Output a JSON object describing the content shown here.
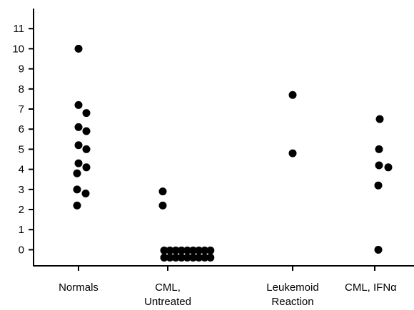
{
  "chart_data": {
    "type": "dot",
    "categories": [
      [
        "Normals"
      ],
      [
        "CML,",
        "Untreated"
      ],
      [
        "Leukemoid",
        "Reaction"
      ],
      [
        "CML, IFNα"
      ]
    ],
    "values": [
      [
        10.0,
        7.2,
        6.8,
        6.1,
        5.9,
        5.2,
        5.0,
        4.3,
        4.1,
        3.8,
        3.0,
        2.8,
        2.2
      ],
      [
        2.9,
        2.2,
        0,
        0,
        0,
        0,
        0,
        0,
        0,
        0,
        0,
        0,
        0,
        0,
        0,
        0,
        0,
        0,
        0,
        0
      ],
      [
        7.7,
        4.8
      ],
      [
        6.5,
        5.0,
        4.2,
        4.1,
        3.2,
        0
      ]
    ],
    "color": "#000000",
    "ylim": [
      -0.8,
      12
    ],
    "yticks": [
      0,
      1,
      2,
      3,
      4,
      5,
      6,
      7,
      8,
      9,
      10,
      11
    ]
  }
}
